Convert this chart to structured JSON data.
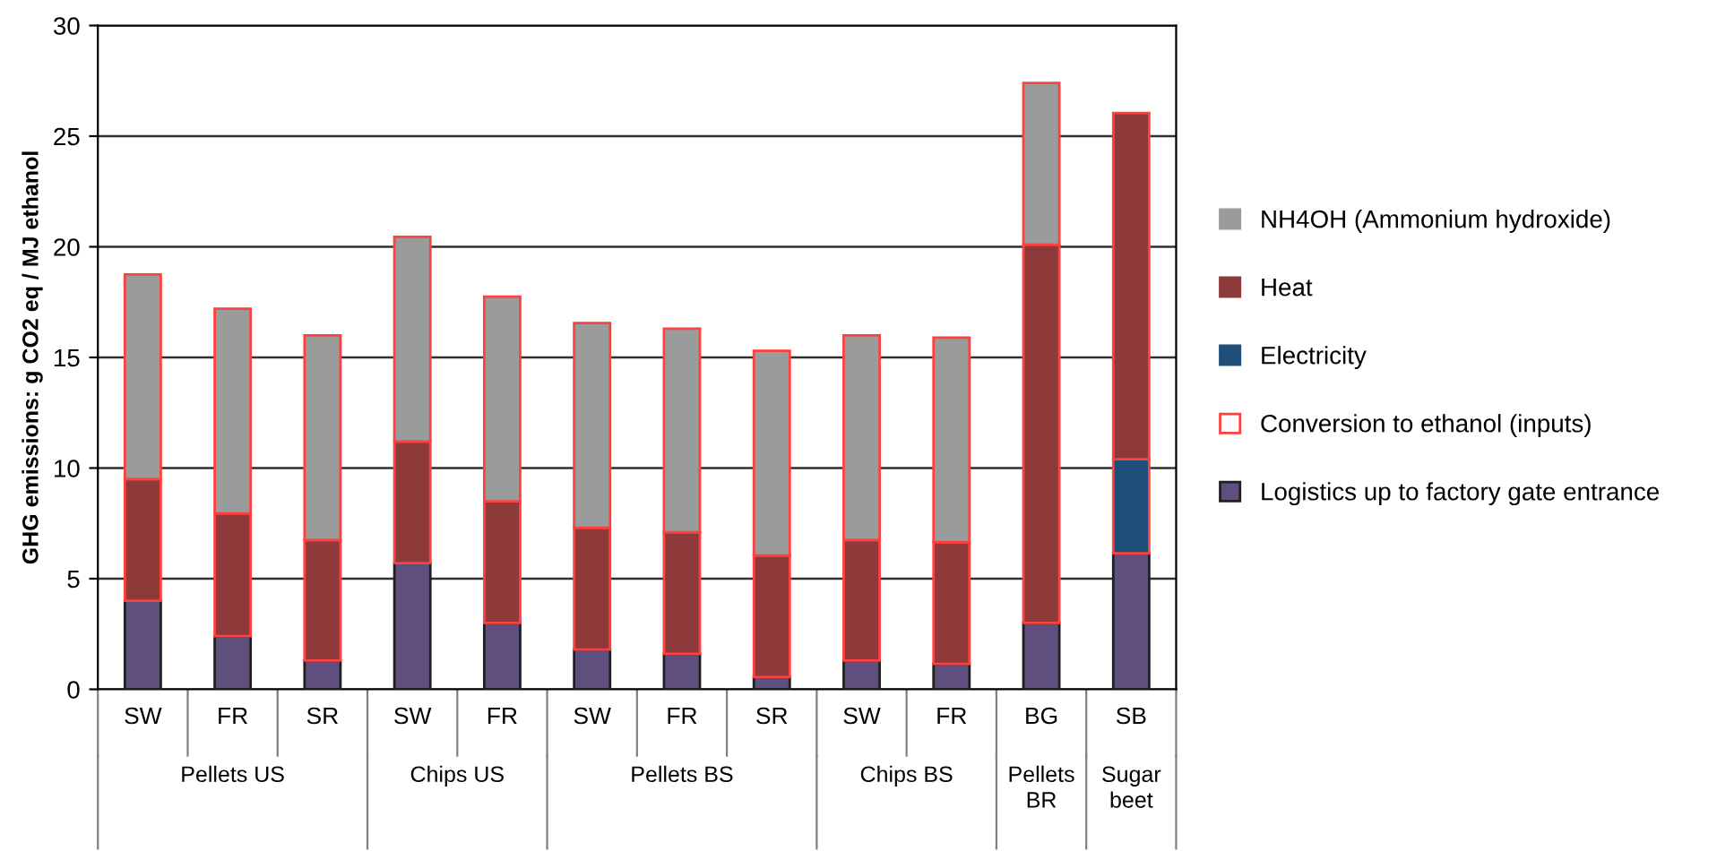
{
  "chart_data": {
    "type": "bar",
    "stacked": true,
    "ylabel": "GHG emissions: g CO2 eq / MJ ethanol",
    "categories": [
      "SW",
      "FR",
      "SR",
      "SW",
      "FR",
      "SW",
      "FR",
      "SR",
      "SW",
      "FR",
      "BG",
      "SB"
    ],
    "annotations": [
      "Pellets US",
      "Chips US",
      "Pellets BS",
      "Chips BS",
      "Pellets BR",
      "Sugar beet"
    ],
    "series": [
      {
        "name": "Logistics up to factory gate entrance",
        "color": "#5f4f7f",
        "values": [
          4.0,
          2.4,
          1.3,
          5.7,
          3.0,
          1.8,
          1.6,
          0.55,
          1.3,
          1.15,
          3.0,
          6.15
        ]
      },
      {
        "name": "Conversion to ethanol (inputs)",
        "color": "#ff4040",
        "values": [
          null,
          null,
          null,
          null,
          null,
          null,
          null,
          null,
          null,
          null,
          null,
          null
        ]
      },
      {
        "name": "Electricity",
        "color": "#1f4e79",
        "values": [
          null,
          null,
          null,
          null,
          null,
          null,
          null,
          null,
          null,
          null,
          null,
          4.25
        ]
      },
      {
        "name": "Heat",
        "color": "#8e3a3a",
        "values": [
          5.5,
          5.55,
          5.45,
          5.5,
          5.5,
          5.5,
          5.5,
          5.5,
          5.45,
          5.5,
          17.1,
          15.65
        ]
      },
      {
        "name": "NH4OH (Ammonium hydroxide)",
        "color": "#9a9c9c",
        "values": [
          9.25,
          9.25,
          9.25,
          9.25,
          9.25,
          9.25,
          9.2,
          9.25,
          9.25,
          9.25,
          7.3,
          null
        ]
      }
    ],
    "ylim": [
      0,
      30
    ],
    "yticks": [
      0,
      5,
      10,
      15,
      20,
      25,
      30
    ],
    "grid": "y",
    "legend": "right"
  }
}
